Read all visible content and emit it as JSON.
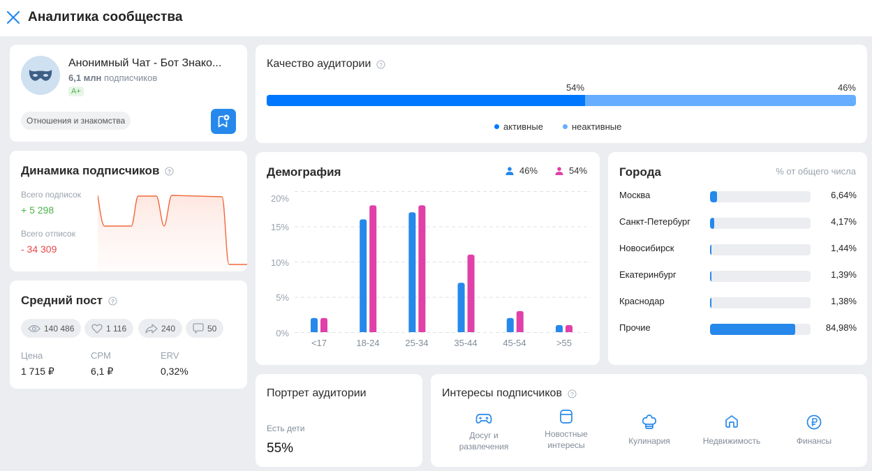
{
  "header": {
    "title": "Аналитика сообщества",
    "close_icon": "close-icon"
  },
  "profile": {
    "name": "Анонимный Чат - Бот Знако...",
    "subscribers_count": "6,1 млн",
    "subscribers_label": "подписчиков",
    "rating": "A+",
    "category": "Отношения и знакомства",
    "avatar_icon": "mask-icon",
    "bookmark_icon": "bookmark-add-icon"
  },
  "dynamics": {
    "title": "Динамика подписчиков",
    "subscribed_label": "Всего подписок",
    "subscribed_value": "+ 5 298",
    "unsubscribed_label": "Всего отписок",
    "unsubscribed_value": "- 34 309",
    "colors": {
      "positive": "#4bb34b",
      "negative": "#e64646",
      "line": "#f0683c"
    }
  },
  "avg_post": {
    "title": "Средний пост",
    "views": "140 486",
    "likes": "1 116",
    "shares": "240",
    "comments": "50",
    "price_label": "Цена",
    "price_value": "1 715 ₽",
    "cpm_label": "CPM",
    "cpm_value": "6,1 ₽",
    "erv_label": "ERV",
    "erv_value": "0,32%"
  },
  "quality": {
    "title": "Качество аудитории",
    "active_pct": "54%",
    "inactive_pct": "46%",
    "active_label": "активные",
    "inactive_label": "неактивные",
    "colors": {
      "active": "#0077ff",
      "inactive": "#66adff"
    }
  },
  "demography": {
    "title": "Демография",
    "male_pct": "46%",
    "female_pct": "54%",
    "y_ticks": [
      "20%",
      "15%",
      "10%",
      "5%",
      "0%"
    ],
    "colors": {
      "male": "#2688eb",
      "female": "#e040a8"
    }
  },
  "chart_data": {
    "type": "bar",
    "title": "Демография",
    "categories": [
      "<17",
      "18-24",
      "25-34",
      "35-44",
      "45-54",
      ">55"
    ],
    "series": [
      {
        "name": "Мужчины (46%)",
        "values": [
          2,
          16,
          17,
          7,
          2,
          1
        ]
      },
      {
        "name": "Женщины (54%)",
        "values": [
          2,
          18,
          18,
          11,
          3,
          1
        ]
      }
    ],
    "xlabel": "",
    "ylabel": "",
    "ylim": [
      0,
      20
    ],
    "y_ticks": [
      0,
      5,
      10,
      15,
      20
    ],
    "grid": true,
    "legend_position": "top-right"
  },
  "cities": {
    "title": "Города",
    "subtitle": "% от общего числа",
    "items": [
      {
        "name": "Москва",
        "pct": "6,64%",
        "value": 6.64
      },
      {
        "name": "Санкт-Петербург",
        "pct": "4,17%",
        "value": 4.17
      },
      {
        "name": "Новосибирск",
        "pct": "1,44%",
        "value": 1.44
      },
      {
        "name": "Екатеринбург",
        "pct": "1,39%",
        "value": 1.39
      },
      {
        "name": "Краснодар",
        "pct": "1,38%",
        "value": 1.38
      },
      {
        "name": "Прочие",
        "pct": "84,98%",
        "value": 84.98
      }
    ]
  },
  "portrait": {
    "title": "Портрет аудитории",
    "kids_label": "Есть дети",
    "kids_value": "55%"
  },
  "interests": {
    "title": "Интересы подписчиков",
    "items": [
      {
        "line1": "Досуг и",
        "line2": "развлечения",
        "icon": "gamepad-icon"
      },
      {
        "line1": "Новостные",
        "line2": "интересы",
        "icon": "newspaper-icon"
      },
      {
        "line1": "Кулинария",
        "line2": "",
        "icon": "chef-hat-icon"
      },
      {
        "line1": "Недвижимость",
        "line2": "",
        "icon": "home-icon"
      },
      {
        "line1": "Финансы",
        "line2": "",
        "icon": "ruble-icon"
      }
    ]
  }
}
